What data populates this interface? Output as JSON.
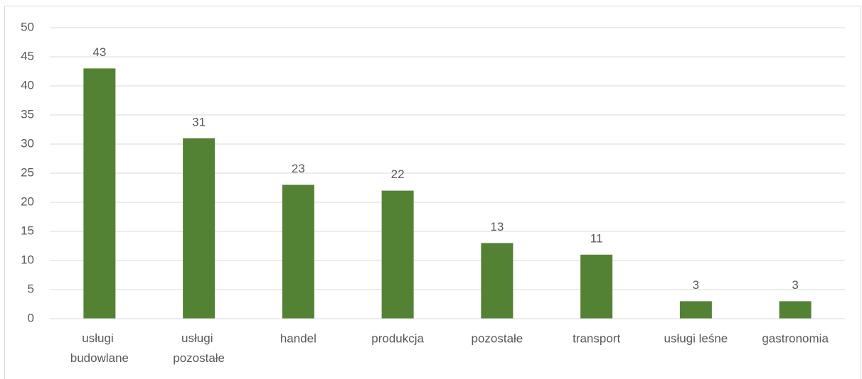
{
  "chart_data": {
    "type": "bar",
    "categories": [
      "usługi budowlane",
      "usługi pozostałe",
      "handel",
      "produkcja",
      "pozostałe",
      "transport",
      "usługi leśne",
      "gastronomia"
    ],
    "values": [
      43,
      31,
      23,
      22,
      13,
      11,
      3,
      3
    ],
    "color": "#548235",
    "ylim": [
      0,
      50
    ],
    "yticks": [
      0,
      5,
      10,
      15,
      20,
      25,
      30,
      35,
      40,
      45,
      50
    ],
    "grid": true
  }
}
